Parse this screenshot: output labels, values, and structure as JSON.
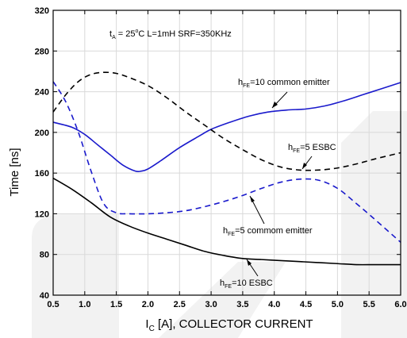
{
  "chart_data": {
    "type": "line",
    "xlabel_main": "I",
    "xlabel_sub": "C",
    "xlabel_rest": " [A], COLLECTOR CURRENT",
    "ylabel": "Time [ns]",
    "xlim": [
      0.5,
      6.0
    ],
    "ylim": [
      40,
      320
    ],
    "grid": true,
    "x_ticks": [
      "0.5",
      "1.0",
      "1.5",
      "2.0",
      "2.5",
      "3.0",
      "3.5",
      "4.0",
      "4.5",
      "5.0",
      "5.5",
      "6.0"
    ],
    "y_ticks": [
      "40",
      "80",
      "120",
      "160",
      "200",
      "240",
      "280",
      "320"
    ],
    "conditions": {
      "t_main": "t",
      "t_sub": "A",
      "text_a": " = 25",
      "deg": "o",
      "text_b": "C L=1mH SRF=350KHz"
    },
    "series": [
      {
        "name": "hFE=10 common emitter",
        "color": "#1a1acc",
        "dash": "solid",
        "x": [
          0.5,
          0.8,
          1.0,
          1.2,
          1.4,
          1.6,
          1.8,
          1.9,
          2.0,
          2.2,
          2.5,
          2.8,
          3.0,
          3.3,
          3.6,
          3.9,
          4.2,
          4.5,
          4.8,
          5.1,
          5.4,
          5.7,
          6.0
        ],
        "y": [
          210,
          205,
          198,
          188,
          178,
          168,
          162,
          162,
          164,
          172,
          185,
          196,
          203,
          210,
          216,
          220,
          222,
          223,
          226,
          231,
          237,
          243,
          249
        ]
      },
      {
        "name": "hFE=5 ESBC",
        "color": "#000000",
        "dash": "dashed",
        "x": [
          0.5,
          0.7,
          0.9,
          1.1,
          1.3,
          1.5,
          1.7,
          2.0,
          2.3,
          2.6,
          2.9,
          3.2,
          3.5,
          3.8,
          4.1,
          4.4,
          4.7,
          5.0,
          5.3,
          5.6,
          6.0
        ],
        "y": [
          220,
          237,
          250,
          257,
          259,
          258,
          254,
          246,
          234,
          220,
          207,
          194,
          183,
          173,
          166,
          163,
          163,
          165,
          169,
          174,
          180
        ]
      },
      {
        "name": "hFE=5 commom emitter",
        "color": "#1a1acc",
        "dash": "dashed",
        "x": [
          0.5,
          0.7,
          0.9,
          1.1,
          1.3,
          1.5,
          1.7,
          2.0,
          2.3,
          2.6,
          2.9,
          3.2,
          3.5,
          3.8,
          4.1,
          4.4,
          4.7,
          5.0,
          5.3,
          5.6,
          6.0
        ],
        "y": [
          250,
          230,
          200,
          162,
          130,
          121,
          120,
          120,
          121,
          123,
          127,
          132,
          138,
          145,
          151,
          154,
          153,
          145,
          130,
          114,
          92
        ]
      },
      {
        "name": "hFE=10 ESBC",
        "color": "#000000",
        "dash": "solid",
        "x": [
          0.5,
          0.8,
          1.1,
          1.4,
          1.7,
          2.0,
          2.3,
          2.6,
          2.9,
          3.2,
          3.5,
          3.8,
          4.1,
          4.4,
          4.7,
          5.0,
          5.3,
          5.6,
          6.0
        ],
        "y": [
          155,
          144,
          131,
          117,
          108,
          101,
          95,
          89,
          83,
          79,
          76,
          75,
          74,
          73,
          72,
          71,
          70,
          70,
          70
        ]
      }
    ],
    "annotations": [
      {
        "main": "h",
        "sub": "FE",
        "text": "=10 common emitter"
      },
      {
        "main": "h",
        "sub": "FE",
        "text": "=5 ESBC"
      },
      {
        "main": "h",
        "sub": "FE",
        "text": "=5 commom emitter"
      },
      {
        "main": "h",
        "sub": "FE",
        "text": "=10 ESBC"
      }
    ]
  }
}
